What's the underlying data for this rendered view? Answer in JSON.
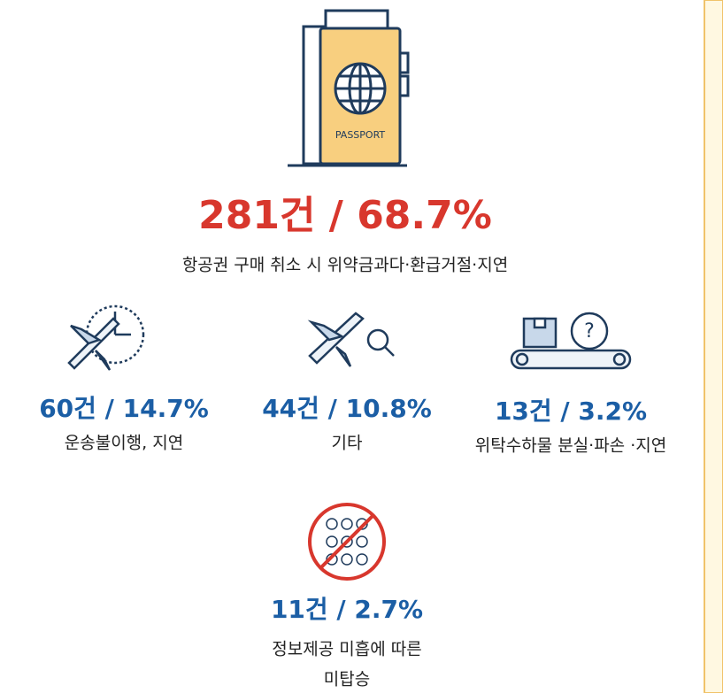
{
  "items": [
    {
      "stat": "281건 / 68.7%",
      "label_lines": [
        "항공권 구매 취소 시 위약금과다·환급거절·지연"
      ]
    },
    {
      "stat": "60건 / 14.7%",
      "label_lines": [
        "운송불이행, 지연"
      ]
    },
    {
      "stat": "44건 / 10.8%",
      "label_lines": [
        "기타"
      ]
    },
    {
      "stat": "13건 / 3.2%",
      "label_lines": [
        "위탁수하물 분실·파손 ·지연"
      ]
    },
    {
      "stat": "11건 / 2.7%",
      "label_lines": [
        "정보제공 미흡에 따른",
        "미탑승"
      ]
    }
  ]
}
